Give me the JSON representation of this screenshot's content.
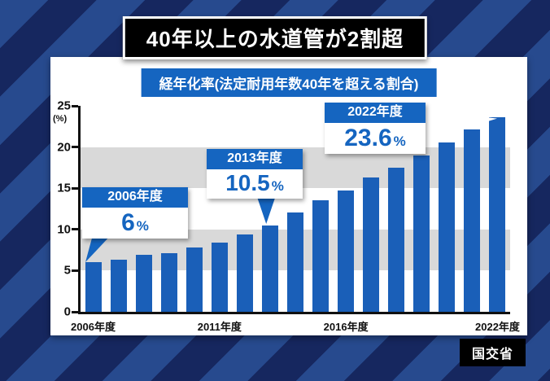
{
  "title": "40年以上の水道管が2割超",
  "subtitle": "経年化率(法定耐用年数40年を超える割合)",
  "source": "国交省",
  "colors": {
    "bar": "#1a5fb8",
    "accent": "#1565c0",
    "band_gray": "#d9d9d9"
  },
  "chart_data": {
    "type": "bar",
    "title": "経年化率(法定耐用年数40年を超える割合)",
    "x": [
      2006,
      2007,
      2008,
      2009,
      2010,
      2011,
      2012,
      2013,
      2014,
      2015,
      2016,
      2017,
      2018,
      2019,
      2020,
      2021,
      2022
    ],
    "values": [
      6,
      6.3,
      6.9,
      7.1,
      7.8,
      8.4,
      9.4,
      10.5,
      12.1,
      13.5,
      14.7,
      16.3,
      17.5,
      19.0,
      20.6,
      22.1,
      23.6
    ],
    "ylim": [
      0,
      25
    ],
    "yticks": [
      0,
      5,
      10,
      15,
      20,
      25
    ],
    "y_unit": "(%)",
    "grid_bands": "gray bands at 5-10 and 15-20",
    "legend": "none",
    "x_tick_labels": [
      {
        "index": 0,
        "label": "2006年度"
      },
      {
        "index": 5,
        "label": "2011年度"
      },
      {
        "index": 10,
        "label": "2016年度"
      },
      {
        "index": 16,
        "label": "2022年度"
      }
    ],
    "callouts": [
      {
        "year": "2006年度",
        "value_num": "6",
        "unit": "%"
      },
      {
        "year": "2013年度",
        "value_num": "10.5",
        "unit": "%"
      },
      {
        "year": "2022年度",
        "value_num": "23.6",
        "unit": "%"
      }
    ]
  }
}
